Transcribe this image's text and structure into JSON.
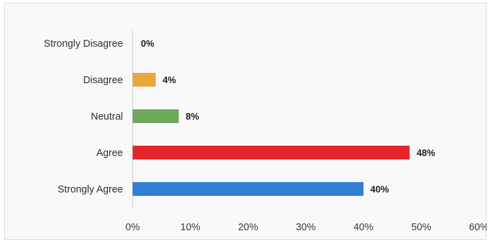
{
  "chart_data": {
    "type": "bar",
    "orientation": "horizontal",
    "categories": [
      "Strongly Disagree",
      "Disagree",
      "Neutral",
      "Agree",
      "Strongly Agree"
    ],
    "values": [
      0,
      4,
      8,
      48,
      40
    ],
    "value_labels": [
      "0%",
      "4%",
      "8%",
      "48%",
      "40%"
    ],
    "bar_colors": [
      "#e8a93a",
      "#e8a93a",
      "#6fa95a",
      "#e5262b",
      "#2f7fd3"
    ],
    "x_ticks": [
      0,
      10,
      20,
      30,
      40,
      50,
      60
    ],
    "x_tick_labels": [
      "0%",
      "10%",
      "20%",
      "30%",
      "40%",
      "50%",
      "60%"
    ],
    "xlim": [
      0,
      60
    ],
    "title": "",
    "xlabel": "",
    "ylabel": "",
    "grid": false,
    "legend": "none"
  }
}
